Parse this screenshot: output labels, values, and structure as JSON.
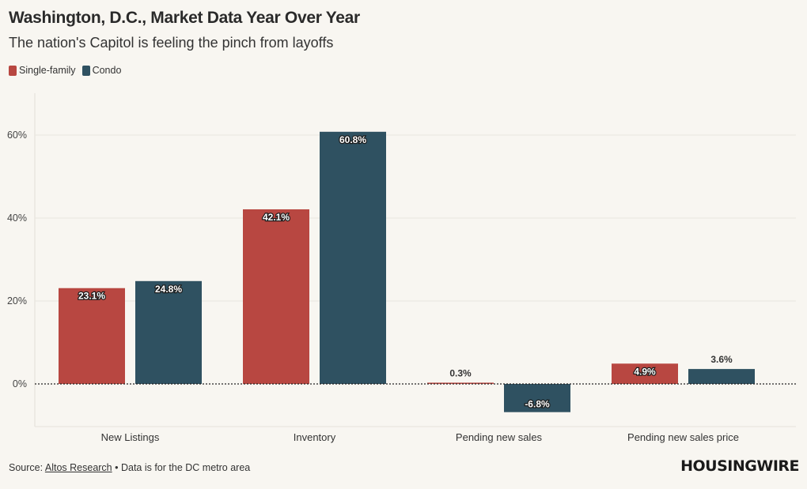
{
  "title": "Washington, D.C., Market Data Year Over Year",
  "subtitle": "The nation's Capitol is feeling the pinch from layoffs",
  "footer": {
    "prefix": "Source: ",
    "source_link": "Altos Research",
    "suffix": " • Data is for the DC metro area"
  },
  "logo": "HOUSINGWIRE",
  "colors": {
    "single_family": "#b84741",
    "condo": "#2f5161",
    "background": "#f8f6f1"
  },
  "chart_data": {
    "type": "bar",
    "title": "Washington, D.C., Market Data Year Over Year",
    "xlabel": "",
    "ylabel": "",
    "categories": [
      "New Listings",
      "Inventory",
      "Pending new sales",
      "Pending new sales price"
    ],
    "series": [
      {
        "name": "Single-family",
        "values": [
          23.1,
          42.1,
          0.3,
          4.9
        ]
      },
      {
        "name": "Condo",
        "values": [
          24.8,
          60.8,
          -6.8,
          3.6
        ]
      }
    ],
    "data_labels": [
      [
        "23.1%",
        "42.1%",
        "0.3%",
        "4.9%"
      ],
      [
        "24.8%",
        "60.8%",
        "-6.8%",
        "3.6%"
      ]
    ],
    "y_ticks": [
      0,
      20,
      40,
      60
    ],
    "y_tick_labels": [
      "0%",
      "20%",
      "40%",
      "60%"
    ],
    "ylim": [
      -10,
      70
    ],
    "legend": "top-left",
    "grid": true
  }
}
